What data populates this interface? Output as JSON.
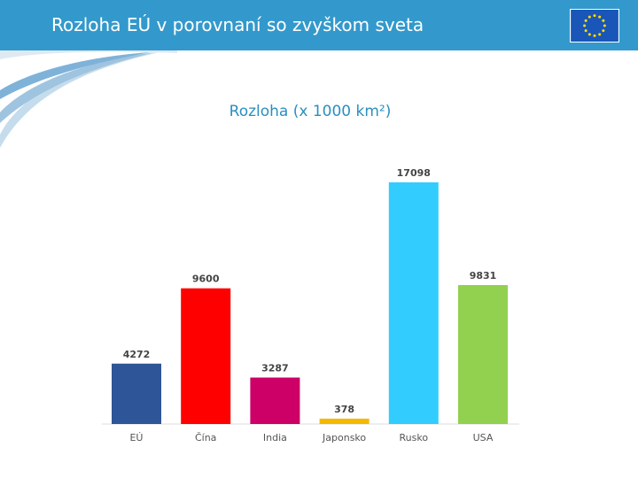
{
  "header": {
    "title": "Rozloha EÚ v porovnaní so zvyškom sveta",
    "flag_icon": "eu-flag-icon"
  },
  "colors": {
    "header_bg": "#3399cc",
    "title_text": "#2a8fc0"
  },
  "chart_data": {
    "type": "bar",
    "title": "Rozloha (x 1000 km²)",
    "xlabel": "",
    "ylabel": "",
    "ylim": [
      0,
      17098
    ],
    "grid": false,
    "legend": "none",
    "categories": [
      "EÚ",
      "Čína",
      "India",
      "Japonsko",
      "Rusko",
      "USA"
    ],
    "values": [
      4272,
      9600,
      3287,
      378,
      17098,
      9831
    ],
    "colors": [
      "#2e5597",
      "#ff0000",
      "#cc0066",
      "#f5b800",
      "#33ccff",
      "#92d050"
    ]
  }
}
